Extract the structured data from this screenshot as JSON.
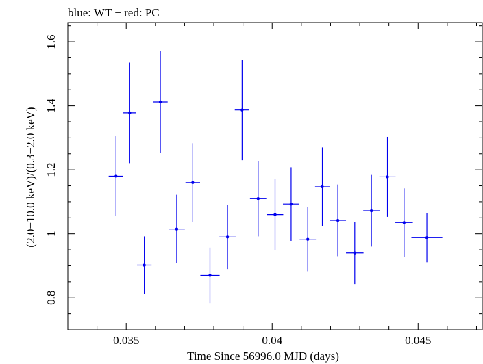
{
  "chart_data": {
    "type": "scatter",
    "title": "blue: WT − red: PC",
    "xlabel": "Time Since 56996.0 MJD (days)",
    "ylabel": "(2.0−10.0 keV)/(0.3−2.0 keV)",
    "xlim": [
      0.033,
      0.0472
    ],
    "ylim": [
      0.7,
      1.66
    ],
    "x_ticks": [
      {
        "value": 0.035,
        "label": "0.035"
      },
      {
        "value": 0.04,
        "label": "0.04"
      },
      {
        "value": 0.045,
        "label": "0.045"
      }
    ],
    "y_ticks": [
      {
        "value": 0.8,
        "label": "0.8"
      },
      {
        "value": 1.0,
        "label": "1"
      },
      {
        "value": 1.2,
        "label": "1.2"
      },
      {
        "value": 1.4,
        "label": "1.4"
      },
      {
        "value": 1.6,
        "label": "1.6"
      }
    ],
    "grid": false,
    "series": [
      {
        "color": "#0000ee",
        "points": [
          {
            "x": 0.03465,
            "y": 1.18,
            "xerr": 0.00025,
            "yerr": 0.125
          },
          {
            "x": 0.03512,
            "y": 1.378,
            "xerr": 0.00022,
            "yerr": 0.157
          },
          {
            "x": 0.03562,
            "y": 0.902,
            "xerr": 0.00025,
            "yerr": 0.09
          },
          {
            "x": 0.03617,
            "y": 1.412,
            "xerr": 0.00025,
            "yerr": 0.16
          },
          {
            "x": 0.03673,
            "y": 1.015,
            "xerr": 0.00028,
            "yerr": 0.107
          },
          {
            "x": 0.03728,
            "y": 1.16,
            "xerr": 0.00025,
            "yerr": 0.123
          },
          {
            "x": 0.03787,
            "y": 0.87,
            "xerr": 0.00033,
            "yerr": 0.087
          },
          {
            "x": 0.03847,
            "y": 0.99,
            "xerr": 0.00028,
            "yerr": 0.1
          },
          {
            "x": 0.03897,
            "y": 1.387,
            "xerr": 0.00025,
            "yerr": 0.157
          },
          {
            "x": 0.03952,
            "y": 1.11,
            "xerr": 0.00028,
            "yerr": 0.118
          },
          {
            "x": 0.0401,
            "y": 1.06,
            "xerr": 0.00028,
            "yerr": 0.112
          },
          {
            "x": 0.04065,
            "y": 1.093,
            "xerr": 0.00028,
            "yerr": 0.115
          },
          {
            "x": 0.04122,
            "y": 0.983,
            "xerr": 0.00028,
            "yerr": 0.1
          },
          {
            "x": 0.04172,
            "y": 1.147,
            "xerr": 0.00025,
            "yerr": 0.123
          },
          {
            "x": 0.04225,
            "y": 1.042,
            "xerr": 0.00028,
            "yerr": 0.112
          },
          {
            "x": 0.04283,
            "y": 0.94,
            "xerr": 0.0003,
            "yerr": 0.097
          },
          {
            "x": 0.0434,
            "y": 1.072,
            "xerr": 0.00028,
            "yerr": 0.112
          },
          {
            "x": 0.04395,
            "y": 1.178,
            "xerr": 0.00028,
            "yerr": 0.125
          },
          {
            "x": 0.04452,
            "y": 1.035,
            "xerr": 0.0003,
            "yerr": 0.107
          },
          {
            "x": 0.0453,
            "y": 0.988,
            "xerr": 0.00053,
            "yerr": 0.077
          }
        ]
      }
    ]
  }
}
